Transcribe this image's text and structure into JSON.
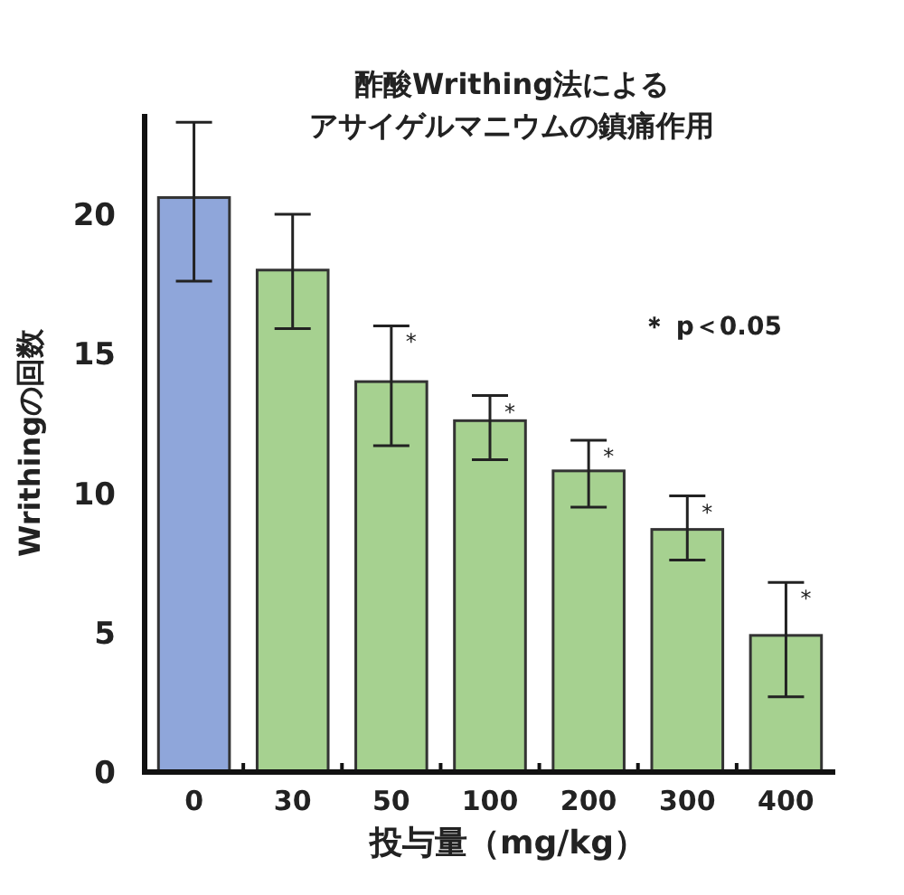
{
  "chart_data": {
    "type": "bar",
    "title": "酢酸Writhing法による",
    "subtitle": "アサイゲルマニウムの鎮痛作用",
    "xlabel": "投与量（mg/kg）",
    "ylabel": "Writhingの回数",
    "categories": [
      "0",
      "30",
      "50",
      "100",
      "200",
      "300",
      "400"
    ],
    "values": [
      20.6,
      18.0,
      14.0,
      12.6,
      10.8,
      8.7,
      4.9
    ],
    "errors": [
      [
        17.6,
        23.3
      ],
      [
        15.9,
        20.0
      ],
      [
        11.7,
        16.0
      ],
      [
        11.2,
        13.5
      ],
      [
        9.5,
        11.9
      ],
      [
        7.6,
        9.9
      ],
      [
        2.7,
        6.8
      ]
    ],
    "colors": [
      "#8fa6da",
      "#a6d190",
      "#a6d190",
      "#a6d190",
      "#a6d190",
      "#a6d190",
      "#a6d190"
    ],
    "ylim": [
      0,
      23.6
    ],
    "yticks": [
      0,
      5,
      10,
      15,
      20
    ],
    "grid": false,
    "annotations": [
      "＊ p＜0.05",
      {
        "text": "*",
        "x": "50",
        "y": 16.0
      },
      {
        "text": "*",
        "x": "100",
        "y": 13.5
      },
      {
        "text": "*",
        "x": "200",
        "y": 11.9
      },
      {
        "text": "*",
        "x": "300",
        "y": 9.9
      },
      {
        "text": "*",
        "x": "400",
        "y": 6.8
      }
    ]
  }
}
